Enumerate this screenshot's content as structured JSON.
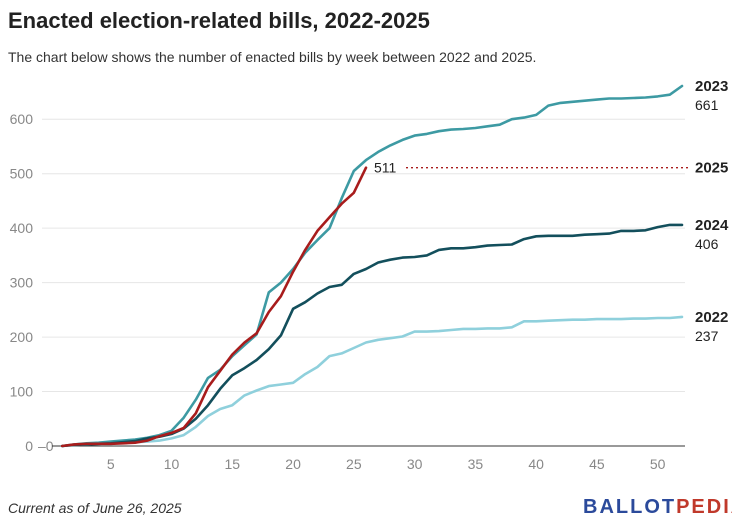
{
  "title": "Enacted election-related bills, 2022-2025",
  "subtitle": "The chart below shows the number of enacted bills by week between 2022 and 2025.",
  "footer": "Current as of June 26, 2025",
  "logo": {
    "part1": "BALLOT",
    "part2": "PEDIA"
  },
  "chart_data": {
    "type": "line",
    "title": "Enacted election-related bills, 2022-2025",
    "xlabel": "",
    "ylabel": "",
    "xlim": [
      0,
      52
    ],
    "ylim": [
      0,
      680
    ],
    "x_ticks": [
      5,
      10,
      15,
      20,
      25,
      30,
      35,
      40,
      45,
      50
    ],
    "y_ticks": [
      0,
      100,
      200,
      300,
      400,
      500,
      600
    ],
    "grid": "horizontal",
    "zero_label": "0",
    "series": [
      {
        "name": "2022",
        "end_label": "237",
        "color": "#8fd0dc",
        "x": [
          1,
          2,
          3,
          4,
          5,
          6,
          7,
          8,
          9,
          10,
          11,
          12,
          13,
          14,
          15,
          16,
          17,
          18,
          19,
          20,
          21,
          22,
          23,
          24,
          25,
          26,
          27,
          28,
          29,
          30,
          31,
          32,
          33,
          34,
          35,
          36,
          37,
          38,
          39,
          40,
          41,
          42,
          43,
          44,
          45,
          46,
          47,
          48,
          49,
          50,
          51,
          52
        ],
        "y": [
          0,
          2,
          3,
          4,
          5,
          6,
          7,
          8,
          10,
          14,
          20,
          35,
          55,
          68,
          75,
          93,
          102,
          110,
          113,
          116,
          132,
          145,
          165,
          170,
          180,
          190,
          195,
          198,
          201,
          210,
          210,
          211,
          213,
          215,
          215,
          216,
          216,
          218,
          229,
          229,
          230,
          231,
          232,
          232,
          233,
          233,
          233,
          234,
          234,
          235,
          235,
          237
        ]
      },
      {
        "name": "2023",
        "end_label": "661",
        "color": "#3d9aa3",
        "x": [
          1,
          2,
          3,
          4,
          5,
          6,
          7,
          8,
          9,
          10,
          11,
          12,
          13,
          14,
          15,
          16,
          17,
          18,
          19,
          20,
          21,
          22,
          23,
          24,
          25,
          26,
          27,
          28,
          29,
          30,
          31,
          32,
          33,
          34,
          35,
          36,
          37,
          38,
          39,
          40,
          41,
          42,
          43,
          44,
          45,
          46,
          47,
          48,
          49,
          50,
          51,
          52
        ],
        "y": [
          0,
          3,
          5,
          6,
          8,
          10,
          12,
          15,
          20,
          28,
          52,
          85,
          125,
          140,
          165,
          185,
          205,
          282,
          300,
          325,
          355,
          378,
          400,
          455,
          505,
          525,
          540,
          552,
          562,
          570,
          573,
          578,
          581,
          582,
          584,
          587,
          590,
          600,
          603,
          608,
          625,
          630,
          632,
          634,
          636,
          638,
          638,
          639,
          640,
          642,
          645,
          661
        ]
      },
      {
        "name": "2024",
        "end_label": "406",
        "color": "#134f5c",
        "x": [
          1,
          2,
          3,
          4,
          5,
          6,
          7,
          8,
          9,
          10,
          11,
          12,
          13,
          14,
          15,
          16,
          17,
          18,
          19,
          20,
          21,
          22,
          23,
          24,
          25,
          26,
          27,
          28,
          29,
          30,
          31,
          32,
          33,
          34,
          35,
          36,
          37,
          38,
          39,
          40,
          41,
          42,
          43,
          44,
          45,
          46,
          47,
          48,
          49,
          50,
          51,
          52
        ],
        "y": [
          0,
          2,
          3,
          4,
          5,
          7,
          9,
          14,
          17,
          22,
          32,
          50,
          75,
          105,
          130,
          143,
          158,
          178,
          203,
          252,
          264,
          280,
          292,
          296,
          316,
          325,
          337,
          342,
          346,
          347,
          350,
          360,
          363,
          363,
          365,
          368,
          369,
          370,
          380,
          385,
          386,
          386,
          386,
          388,
          389,
          390,
          395,
          395,
          396,
          402,
          406,
          406
        ]
      },
      {
        "name": "2025",
        "end_label": "511",
        "color": "#a81c1c",
        "annotation": "511",
        "x": [
          1,
          2,
          3,
          4,
          5,
          6,
          7,
          8,
          9,
          10,
          11,
          12,
          13,
          14,
          15,
          16,
          17,
          18,
          19,
          20,
          21,
          22,
          23,
          24,
          25,
          26
        ],
        "y": [
          0,
          3,
          4,
          4,
          4,
          5,
          6,
          10,
          18,
          24,
          33,
          60,
          108,
          138,
          168,
          190,
          207,
          246,
          275,
          320,
          360,
          395,
          420,
          445,
          465,
          511
        ]
      }
    ]
  }
}
